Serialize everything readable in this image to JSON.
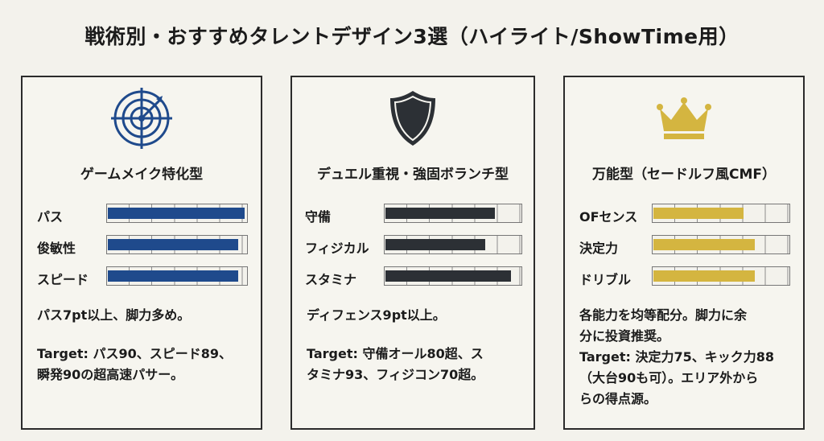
{
  "title": "戦術別・おすすめタレントデザイン3選（ハイライト/ShowTime用）",
  "cards": [
    {
      "icon": "target-icon",
      "accent": "#1f4a8c",
      "title": "ゲームメイク特化型",
      "stats": [
        {
          "label": "パス",
          "level": 0.99
        },
        {
          "label": "俊敏性",
          "level": 0.94
        },
        {
          "label": "スピード",
          "level": 0.94
        }
      ],
      "lines": [
        "パス7pt以上、脚力多め。",
        "Target: パス90、スピード89、",
        "瞬発90の超高速パサー。"
      ]
    },
    {
      "icon": "shield-icon",
      "accent": "#2c3035",
      "title": "デュエル重視・強固ボランチ型",
      "stats": [
        {
          "label": "守備",
          "level": 0.81
        },
        {
          "label": "フィジカル",
          "level": 0.74
        },
        {
          "label": "スタミナ",
          "level": 0.93
        }
      ],
      "lines": [
        "ディフェンス9pt以上。",
        "Target: 守備オール80超、ス",
        "タミナ93、フィジコン70超。"
      ]
    },
    {
      "icon": "crown-icon",
      "accent": "#d4b540",
      "title": "万能型（セードルフ風CMF）",
      "stats": [
        {
          "label": "OFセンス",
          "level": 0.67
        },
        {
          "label": "決定力",
          "level": 0.75
        },
        {
          "label": "ドリブル",
          "level": 0.75
        }
      ],
      "lines": [
        "各能力を均等配分。脚力に余",
        "分に投資推奨。",
        "Target: 決定力75、キック力88",
        "（大台90も可）。エリア外から",
        "らの得点源。"
      ]
    }
  ]
}
